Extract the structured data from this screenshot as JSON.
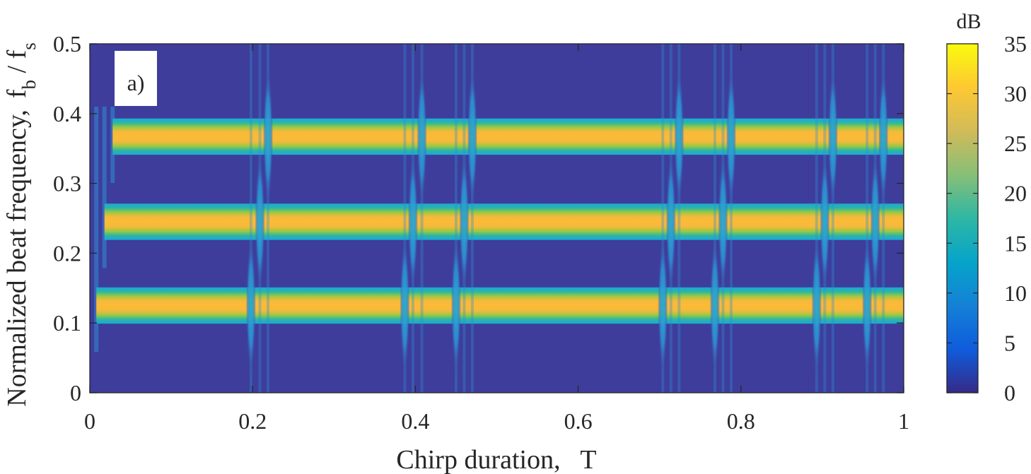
{
  "chart_data": {
    "type": "heatmap",
    "panel_label": "a)",
    "xlabel": "Chirp duration,   T",
    "ylabel_main": "Normalized beat frequency,",
    "ylabel_symbol": {
      "f1": "f",
      "sub1": "b",
      "slash": " / ",
      "f2": "f",
      "sub2": "s"
    },
    "xlim": [
      0,
      1
    ],
    "ylim": [
      0,
      0.5
    ],
    "xticks": [
      0,
      0.2,
      0.4,
      0.6,
      0.8,
      1
    ],
    "xtick_labels": [
      "0",
      "0.2",
      "0.4",
      "0.6",
      "0.8",
      "1"
    ],
    "yticks": [
      0,
      0.1,
      0.2,
      0.3,
      0.4,
      0.5
    ],
    "ytick_labels": [
      "0",
      "0.1",
      "0.2",
      "0.3",
      "0.4",
      "0.5"
    ],
    "colorbar": {
      "title": "dB",
      "range": [
        0,
        35
      ],
      "ticks": [
        0,
        5,
        10,
        15,
        20,
        25,
        30,
        35
      ],
      "tick_labels": [
        "0",
        "5",
        "10",
        "15",
        "20",
        "25",
        "30",
        "35"
      ],
      "colormap": "parula"
    },
    "background_db": 0,
    "bands": [
      {
        "start": 0.008,
        "center": 0.125,
        "halfwidth": 0.026,
        "peak_db": 30,
        "gap_times": [
          0.198,
          0.387,
          0.45,
          0.704,
          0.768,
          0.893,
          0.955
        ]
      },
      {
        "start": 0.018,
        "center": 0.245,
        "halfwidth": 0.026,
        "peak_db": 30,
        "gap_times": [
          0.209,
          0.397,
          0.46,
          0.714,
          0.778,
          0.903,
          0.965
        ]
      },
      {
        "start": 0.028,
        "center": 0.367,
        "halfwidth": 0.026,
        "peak_db": 30,
        "gap_times": [
          0.219,
          0.408,
          0.47,
          0.724,
          0.788,
          0.913,
          0.975
        ]
      }
    ],
    "colors": {
      "background": "#3e3d9c",
      "band_edge": "#1aa6d8",
      "band_core": "#fbbb36",
      "spike": "#2d8ed3"
    }
  }
}
